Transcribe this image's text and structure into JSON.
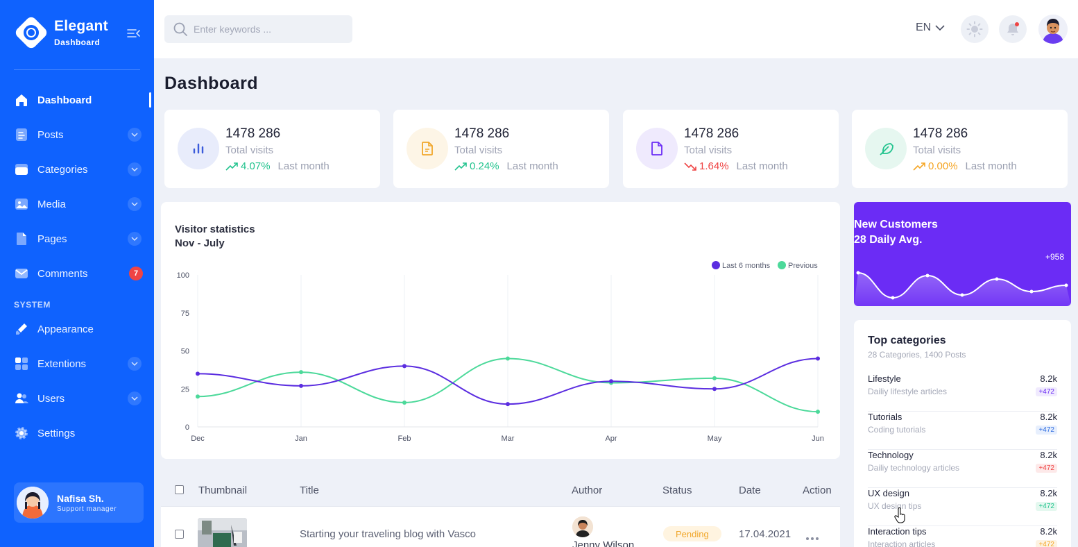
{
  "brand": {
    "title": "Elegant",
    "subtitle": "Dashboard"
  },
  "sidebar": {
    "items": [
      {
        "label": "Dashboard",
        "icon": "home-icon",
        "active": true
      },
      {
        "label": "Posts",
        "icon": "posts-icon",
        "expandable": true
      },
      {
        "label": "Categories",
        "icon": "folder-icon",
        "expandable": true
      },
      {
        "label": "Media",
        "icon": "image-icon",
        "expandable": true
      },
      {
        "label": "Pages",
        "icon": "page-icon",
        "expandable": true
      },
      {
        "label": "Comments",
        "icon": "mail-icon",
        "badge": "7"
      }
    ],
    "section_label": "SYSTEM",
    "system_items": [
      {
        "label": "Appearance",
        "icon": "brush-icon"
      },
      {
        "label": "Extentions",
        "icon": "grid-icon",
        "expandable": true
      },
      {
        "label": "Users",
        "icon": "users-icon",
        "expandable": true
      },
      {
        "label": "Settings",
        "icon": "gear-icon"
      }
    ],
    "user": {
      "name": "Nafisa Sh.",
      "role": "Support manager"
    }
  },
  "topbar": {
    "search_placeholder": "Enter keywords ...",
    "language": "EN"
  },
  "page_title": "Dashboard",
  "stats": [
    {
      "value": "1478 286",
      "label": "Total visits",
      "change": "4.07%",
      "period": "Last month",
      "direction": "up",
      "color": "#22c38e",
      "icon": "bar-chart-icon",
      "icon_bg": "#e8ecfb",
      "icon_color": "#3b5bdb"
    },
    {
      "value": "1478 286",
      "label": "Total visits",
      "change": "0.24%",
      "period": "Last month",
      "direction": "up",
      "color": "#22c38e",
      "icon": "file-icon",
      "icon_bg": "#fdf5e6",
      "icon_color": "#f0a62a"
    },
    {
      "value": "1478 286",
      "label": "Total visits",
      "change": "1.64%",
      "period": "Last month",
      "direction": "down",
      "color": "#ef4444",
      "icon": "file-icon",
      "icon_bg": "#efeafd",
      "icon_color": "#6b2cf5"
    },
    {
      "value": "1478 286",
      "label": "Total visits",
      "change": "0.00%",
      "period": "Last month",
      "direction": "up",
      "color": "#f5a524",
      "icon": "feather-icon",
      "icon_bg": "#e6f7f0",
      "icon_color": "#22c38e"
    }
  ],
  "visitor_chart": {
    "title_line1": "Visitor statistics",
    "title_line2": "Nov - July"
  },
  "chart_data": {
    "type": "line",
    "categories": [
      "Dec",
      "Jan",
      "Feb",
      "Mar",
      "Apr",
      "May",
      "Jun"
    ],
    "series": [
      {
        "name": "Last 6 months",
        "color": "#5b2de0",
        "values": [
          35,
          27,
          40,
          15,
          30,
          25,
          45
        ]
      },
      {
        "name": "Previous",
        "color": "#4cd99a",
        "values": [
          20,
          36,
          16,
          45,
          29,
          32,
          10
        ]
      }
    ],
    "ylim": [
      0,
      100
    ],
    "yticks": [
      0,
      25,
      50,
      75,
      100
    ],
    "legend": "top-right",
    "grid": "vertical"
  },
  "new_customers": {
    "title_line1": "New Customers",
    "title_line2": "28 Daily Avg.",
    "count": "+958"
  },
  "top_categories": {
    "title": "Top categories",
    "subtitle": "28 Categories, 1400 Posts",
    "items": [
      {
        "name": "Lifestyle",
        "desc": "Dailiy lifestyle articles",
        "value": "8.2k",
        "badge": "+472",
        "badge_color": "#6b2cf5",
        "badge_bg": "#f0eafe"
      },
      {
        "name": "Tutorials",
        "desc": "Coding tutorials",
        "value": "8.2k",
        "badge": "+472",
        "badge_color": "#2f6de0",
        "badge_bg": "#e7effd"
      },
      {
        "name": "Technology",
        "desc": "Dailiy technology articles",
        "value": "8.2k",
        "badge": "+472",
        "badge_color": "#ef4444",
        "badge_bg": "#fde9e9"
      },
      {
        "name": "UX design",
        "desc": "UX design tips",
        "value": "8.2k",
        "badge": "+472",
        "badge_color": "#22c38e",
        "badge_bg": "#e4f8ef"
      },
      {
        "name": "Interaction tips",
        "desc": "Interaction articles",
        "value": "8.2k",
        "badge": "+472",
        "badge_color": "#f5a524",
        "badge_bg": "#fdf3e2"
      }
    ]
  },
  "posts_table": {
    "headers": [
      "Thumbnail",
      "Title",
      "Author",
      "Status",
      "Date",
      "Action"
    ],
    "rows": [
      {
        "title": "Starting your traveling blog with Vasco",
        "author": "Jenny Wilson",
        "status": "Pending",
        "date": "17.04.2021"
      }
    ]
  }
}
